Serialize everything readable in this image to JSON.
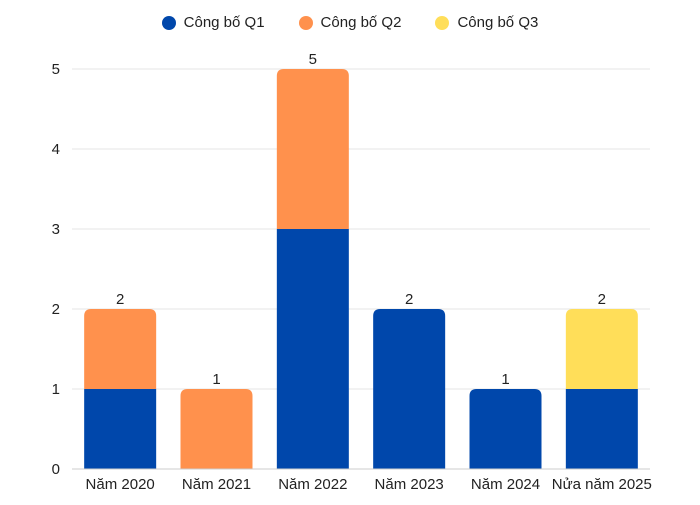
{
  "chart_data": {
    "type": "bar",
    "stacked": true,
    "categories": [
      "Năm 2020",
      "Năm 2021",
      "Năm 2022",
      "Năm 2023",
      "Năm 2024",
      "Nửa năm 2025"
    ],
    "series": [
      {
        "name": "Công bố Q1",
        "color": "#0047AB",
        "values": [
          1,
          0,
          3,
          2,
          1,
          1
        ]
      },
      {
        "name": "Công bố Q2",
        "color": "#FF914D",
        "values": [
          1,
          1,
          2,
          0,
          0,
          0
        ]
      },
      {
        "name": "Công bố Q3",
        "color": "#FFDE59",
        "values": [
          0,
          0,
          0,
          0,
          0,
          1
        ]
      }
    ],
    "totals": [
      2,
      1,
      5,
      2,
      1,
      2
    ],
    "yticks": [
      0,
      1,
      2,
      3,
      4,
      5
    ],
    "ylim": [
      0,
      5
    ],
    "grid": true,
    "legend_position": "top-center"
  }
}
